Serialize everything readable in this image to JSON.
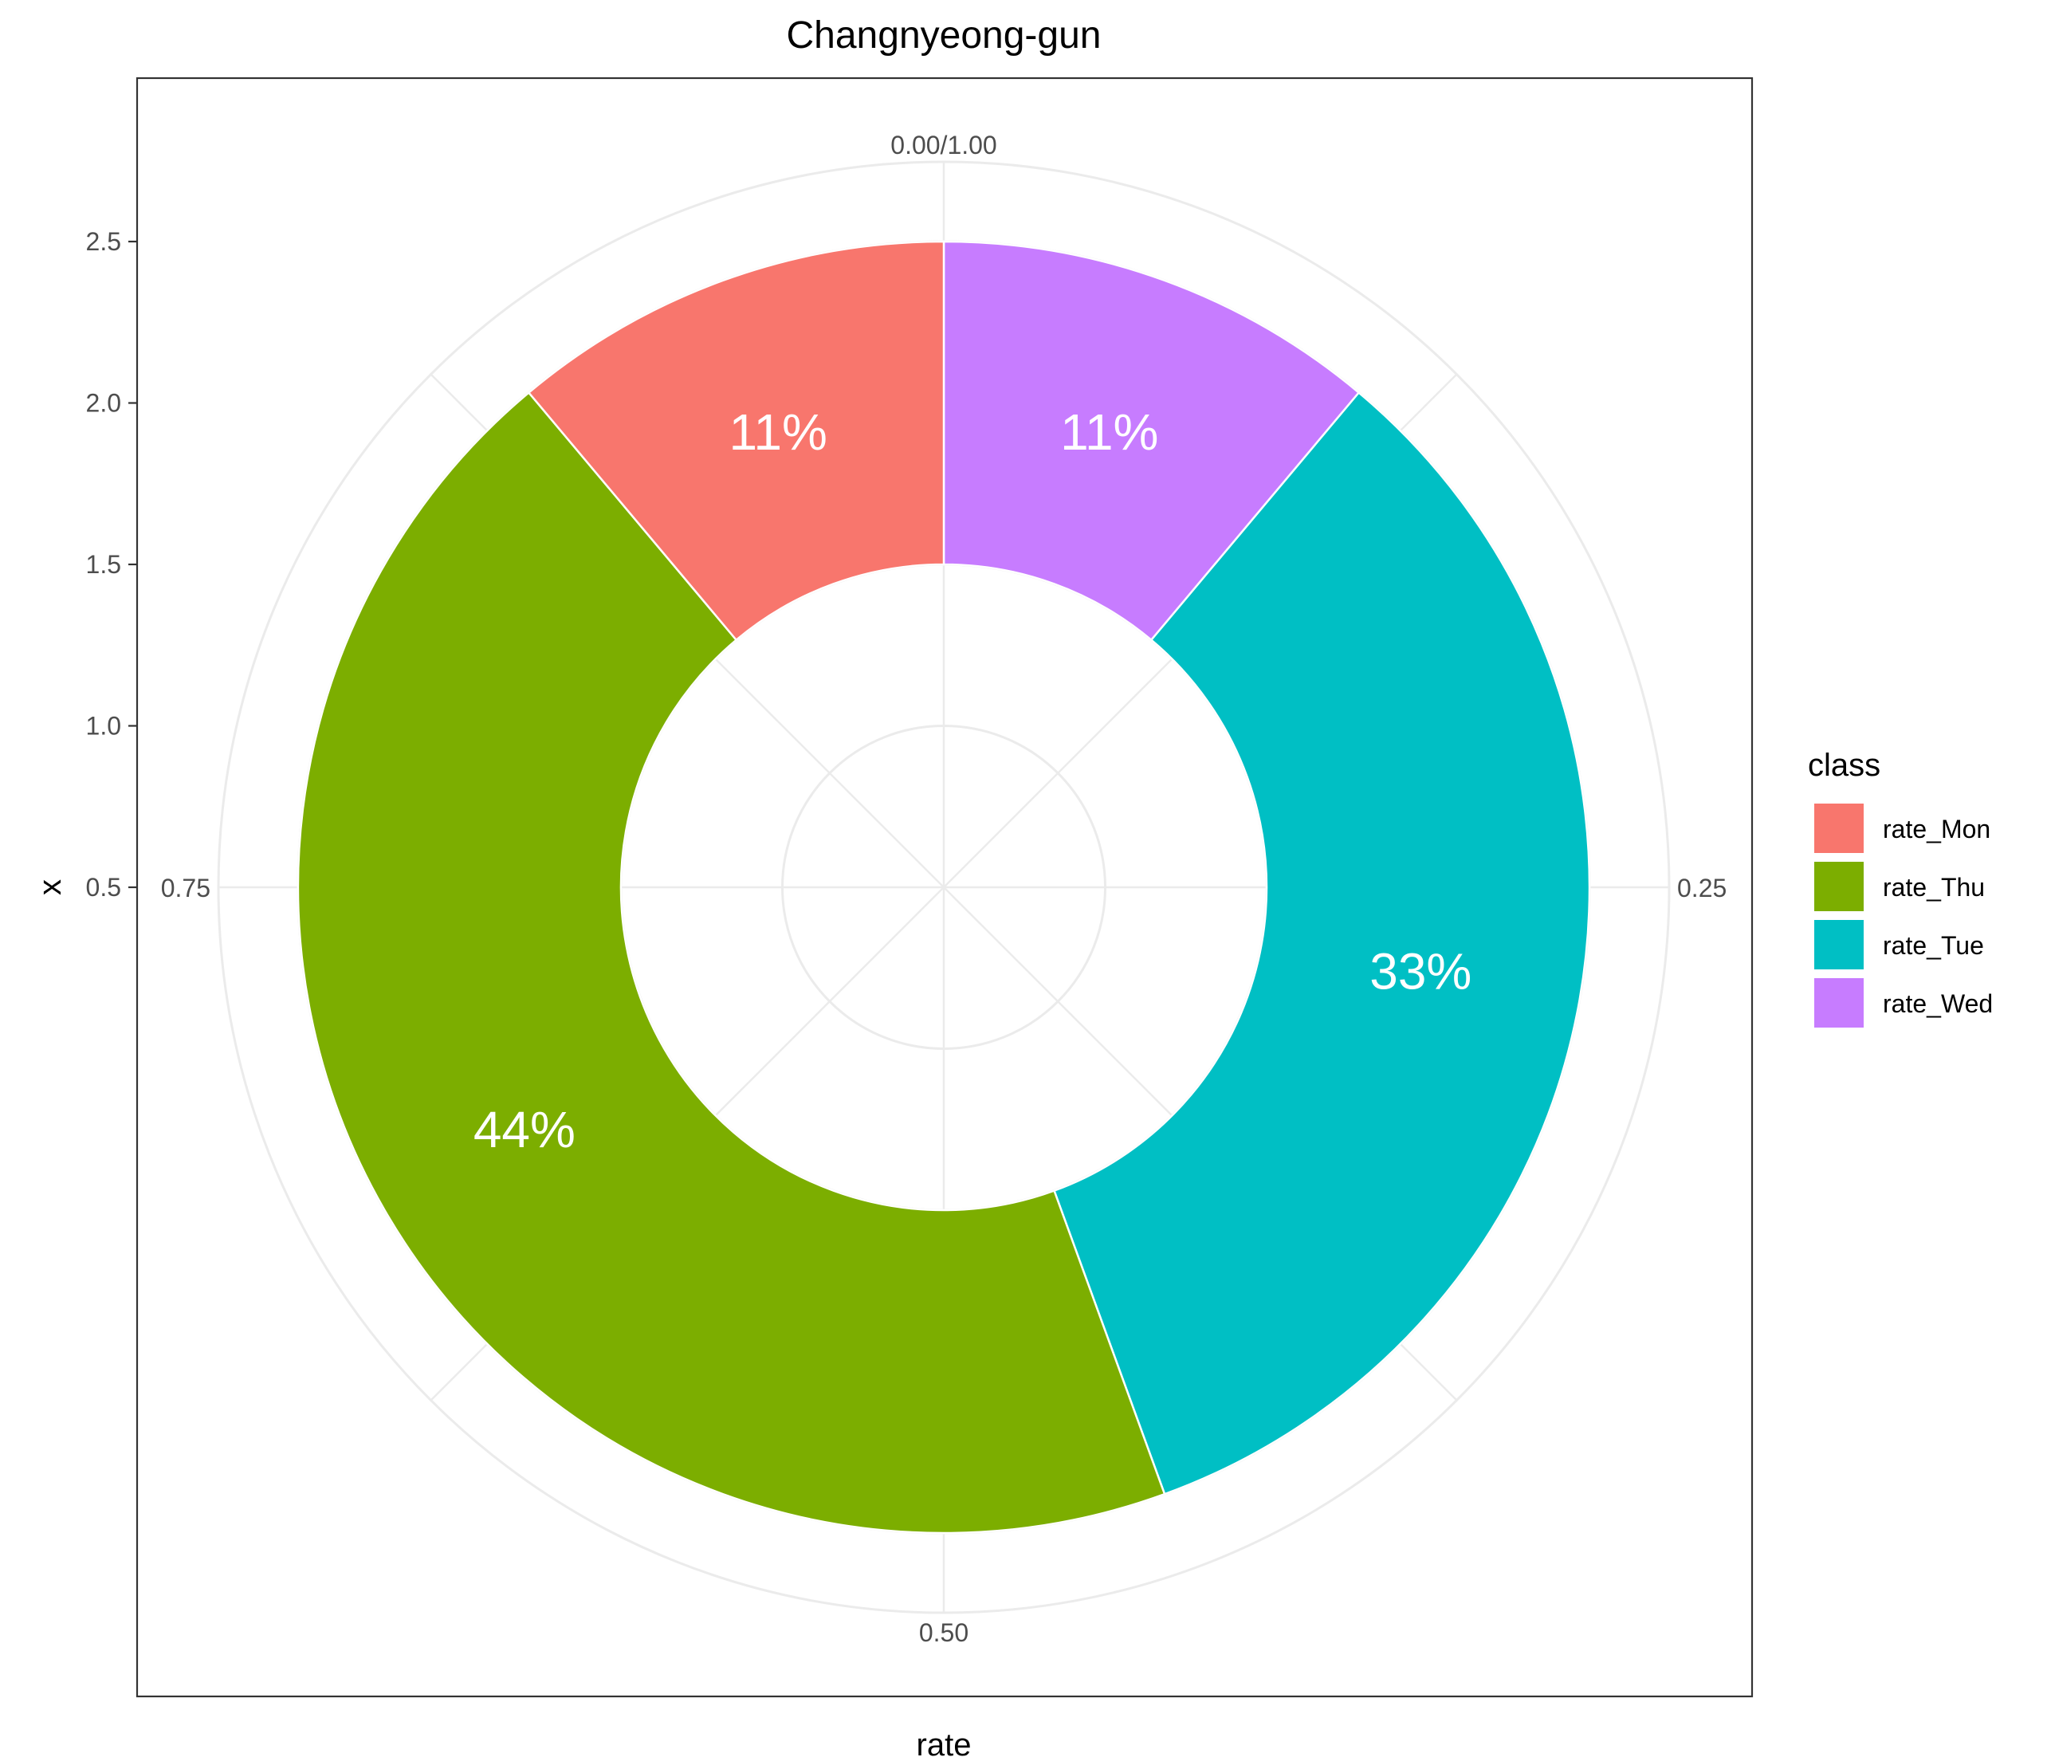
{
  "chart_data": {
    "type": "pie",
    "variant": "donut",
    "title": "Changnyeong-gun",
    "xlabel": "rate",
    "ylabel": "x",
    "y_ticks": [
      "0.5",
      "1.0",
      "1.5",
      "2.0",
      "2.5"
    ],
    "angle_ticks": [
      {
        "value": 0.0,
        "label": "0.00/1.00"
      },
      {
        "value": 0.25,
        "label": "0.25"
      },
      {
        "value": 0.5,
        "label": "0.50"
      },
      {
        "value": 0.75,
        "label": "0.75"
      }
    ],
    "grid": true,
    "legend": {
      "title": "class",
      "position": "right"
    },
    "slices": [
      {
        "name": "rate_Mon",
        "value": 0.1111,
        "label": "11%",
        "color": "#F8766D"
      },
      {
        "name": "rate_Thu",
        "value": 0.4444,
        "label": "44%",
        "color": "#7CAE00"
      },
      {
        "name": "rate_Tue",
        "value": 0.3333,
        "label": "33%",
        "color": "#00BFC4"
      },
      {
        "name": "rate_Wed",
        "value": 0.1111,
        "label": "11%",
        "color": "#C77CFF"
      }
    ],
    "stack_order_clockwise": [
      "rate_Wed",
      "rate_Tue",
      "rate_Thu",
      "rate_Mon"
    ]
  }
}
